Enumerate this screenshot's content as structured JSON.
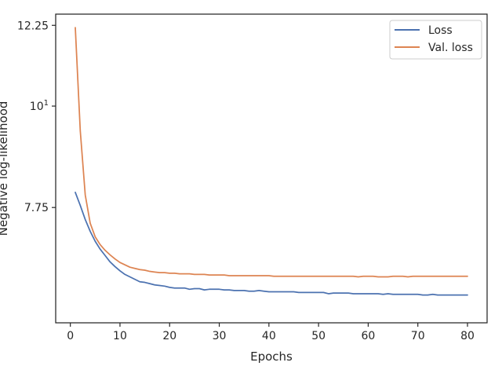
{
  "chart_data": {
    "type": "line",
    "xlabel": "Epochs",
    "ylabel": "Negative log-likelihood",
    "yscale": "log",
    "xlim": [
      -2.95,
      83.95
    ],
    "ylim": [
      5.8,
      12.6
    ],
    "xticks": [
      0,
      10,
      20,
      30,
      40,
      50,
      60,
      70,
      80
    ],
    "yticks": [
      {
        "value": 12.25,
        "label": "12.25"
      },
      {
        "value": 10,
        "label": "10",
        "sup": "1"
      },
      {
        "value": 7.75,
        "label": "7.75"
      }
    ],
    "grid": false,
    "legend_position": "top-right",
    "series": [
      {
        "name": "Loss",
        "color": "#4c72b0",
        "x": [
          1,
          2,
          3,
          4,
          5,
          6,
          7,
          8,
          9,
          10,
          11,
          12,
          13,
          14,
          15,
          16,
          17,
          18,
          19,
          20,
          21,
          22,
          23,
          24,
          25,
          26,
          27,
          28,
          29,
          30,
          31,
          32,
          33,
          34,
          35,
          36,
          37,
          38,
          39,
          40,
          41,
          42,
          43,
          44,
          45,
          46,
          47,
          48,
          49,
          50,
          51,
          52,
          53,
          54,
          55,
          56,
          57,
          58,
          59,
          60,
          61,
          62,
          63,
          64,
          65,
          66,
          67,
          68,
          69,
          70,
          71,
          72,
          73,
          74,
          75,
          76,
          77,
          78,
          79,
          80
        ],
        "values": [
          8.05,
          7.79,
          7.52,
          7.3,
          7.12,
          6.98,
          6.87,
          6.76,
          6.68,
          6.61,
          6.55,
          6.51,
          6.47,
          6.43,
          6.42,
          6.4,
          6.38,
          6.37,
          6.36,
          6.34,
          6.33,
          6.33,
          6.33,
          6.31,
          6.32,
          6.32,
          6.3,
          6.31,
          6.31,
          6.31,
          6.3,
          6.3,
          6.29,
          6.29,
          6.29,
          6.28,
          6.28,
          6.29,
          6.28,
          6.27,
          6.27,
          6.27,
          6.27,
          6.27,
          6.27,
          6.26,
          6.26,
          6.26,
          6.26,
          6.26,
          6.26,
          6.24,
          6.25,
          6.25,
          6.25,
          6.25,
          6.24,
          6.24,
          6.24,
          6.24,
          6.24,
          6.24,
          6.23,
          6.24,
          6.23,
          6.23,
          6.23,
          6.23,
          6.23,
          6.23,
          6.22,
          6.22,
          6.23,
          6.22,
          6.22,
          6.22,
          6.22,
          6.22,
          6.22,
          6.22
        ]
      },
      {
        "name": "Val. loss",
        "color": "#dd8452",
        "x": [
          1,
          2,
          3,
          4,
          5,
          6,
          7,
          8,
          9,
          10,
          11,
          12,
          13,
          14,
          15,
          16,
          17,
          18,
          19,
          20,
          21,
          22,
          23,
          24,
          25,
          26,
          27,
          28,
          29,
          30,
          31,
          32,
          33,
          34,
          35,
          36,
          37,
          38,
          39,
          40,
          41,
          42,
          43,
          44,
          45,
          46,
          47,
          48,
          49,
          50,
          51,
          52,
          53,
          54,
          55,
          56,
          57,
          58,
          59,
          60,
          61,
          62,
          63,
          64,
          65,
          66,
          67,
          68,
          69,
          70,
          71,
          72,
          73,
          74,
          75,
          76,
          77,
          78,
          79,
          80
        ],
        "values": [
          12.18,
          9.4,
          8.0,
          7.45,
          7.2,
          7.06,
          6.96,
          6.88,
          6.81,
          6.75,
          6.71,
          6.67,
          6.65,
          6.63,
          6.62,
          6.6,
          6.59,
          6.58,
          6.58,
          6.57,
          6.57,
          6.56,
          6.56,
          6.56,
          6.55,
          6.55,
          6.55,
          6.54,
          6.54,
          6.54,
          6.54,
          6.53,
          6.53,
          6.53,
          6.53,
          6.53,
          6.53,
          6.53,
          6.53,
          6.53,
          6.52,
          6.52,
          6.52,
          6.52,
          6.52,
          6.52,
          6.52,
          6.52,
          6.52,
          6.52,
          6.52,
          6.52,
          6.52,
          6.52,
          6.52,
          6.52,
          6.52,
          6.51,
          6.52,
          6.52,
          6.52,
          6.51,
          6.51,
          6.51,
          6.52,
          6.52,
          6.52,
          6.51,
          6.52,
          6.52,
          6.52,
          6.52,
          6.52,
          6.52,
          6.52,
          6.52,
          6.52,
          6.52,
          6.52,
          6.52
        ]
      }
    ]
  }
}
